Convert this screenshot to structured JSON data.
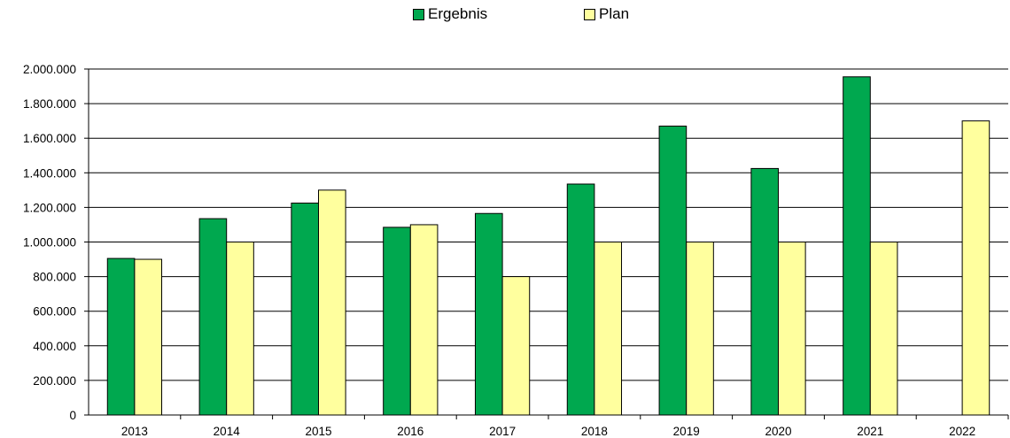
{
  "chart_data": {
    "type": "bar",
    "title": "",
    "xlabel": "",
    "ylabel": "",
    "categories": [
      "2013",
      "2014",
      "2015",
      "2016",
      "2017",
      "2018",
      "2019",
      "2020",
      "2021",
      "2022"
    ],
    "series": [
      {
        "name": "Ergebnis",
        "color": "#00A84F",
        "values": [
          905000,
          1135000,
          1225000,
          1085000,
          1165000,
          1335000,
          1670000,
          1425000,
          1955000,
          null
        ]
      },
      {
        "name": "Plan",
        "color": "#FFFF9E",
        "values": [
          900000,
          1000000,
          1300000,
          1100000,
          800000,
          1000000,
          1000000,
          1000000,
          1000000,
          1700000
        ]
      }
    ],
    "ylim": [
      0,
      2000000
    ],
    "yticks": [
      0,
      200000,
      400000,
      600000,
      800000,
      1000000,
      1200000,
      1400000,
      1600000,
      1800000,
      2000000
    ],
    "ytick_labels": [
      "0",
      "200.000",
      "400.000",
      "600.000",
      "800.000",
      "1.000.000",
      "1.200.000",
      "1.400.000",
      "1.600.000",
      "1.800.000",
      "2.000.000"
    ],
    "grid": true,
    "legend_position": "top-center"
  }
}
